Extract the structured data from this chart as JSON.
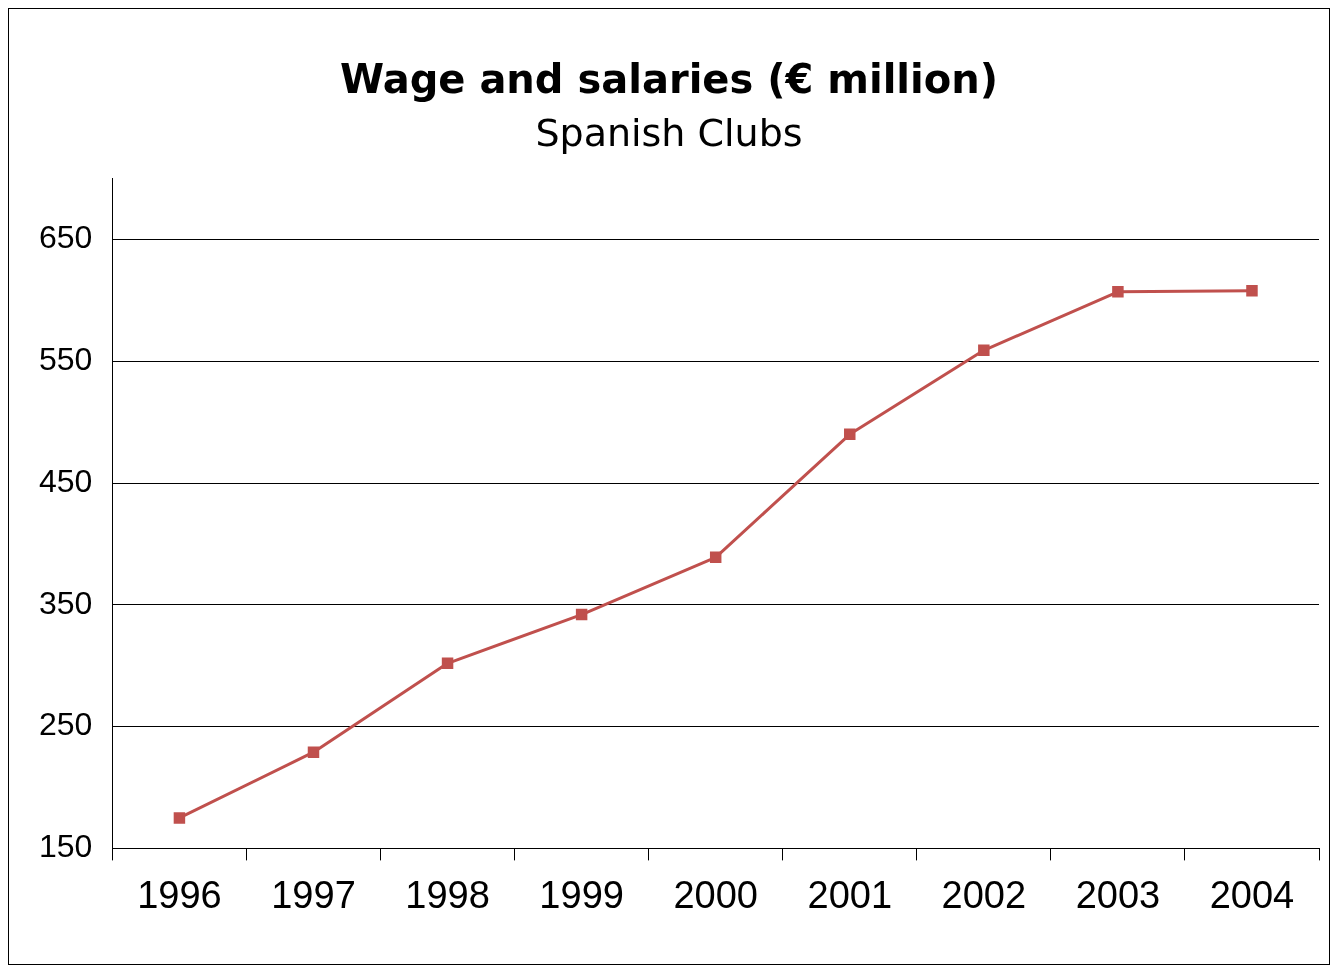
{
  "chart_data": {
    "type": "line",
    "title": "Wage and salaries (€ million)",
    "subtitle": "Spanish Clubs",
    "categories": [
      "1996",
      "1997",
      "1998",
      "1999",
      "2000",
      "2001",
      "2002",
      "2003",
      "2004"
    ],
    "series": [
      {
        "color": "#c0504d",
        "values": [
          175,
          229,
          302,
          342,
          389,
          490,
          559,
          607,
          608
        ]
      }
    ],
    "ylim": [
      150,
      700
    ],
    "yticks": [
      150,
      250,
      350,
      450,
      550,
      650
    ],
    "grid": "y",
    "legend": false,
    "marker": "square",
    "line_style": "solid"
  }
}
